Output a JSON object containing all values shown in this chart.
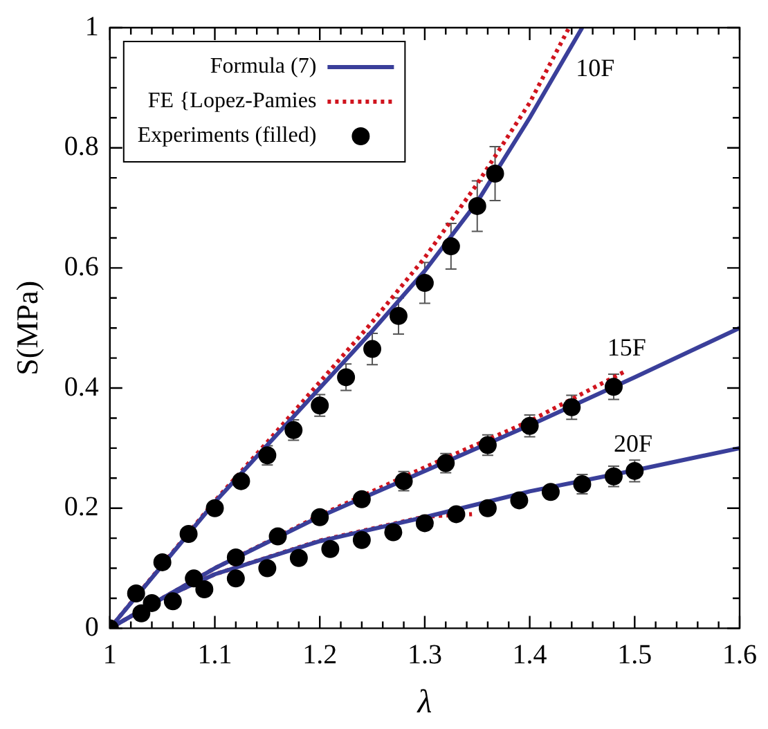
{
  "chart_data": {
    "type": "line",
    "xlabel": "λ",
    "ylabel": "S(MPa)",
    "xlim": [
      1,
      1.6
    ],
    "ylim": [
      0,
      1
    ],
    "xticks": [
      1,
      {
        "value": 1.02,
        "label": null
      },
      {
        "value": 1.04,
        "label": null
      },
      {
        "value": 1.06,
        "label": null
      },
      {
        "value": 1.08,
        "label": null
      },
      1.1,
      {
        "value": 1.12,
        "label": null
      },
      {
        "value": 1.14,
        "label": null
      },
      {
        "value": 1.16,
        "label": null
      },
      {
        "value": 1.18,
        "label": null
      },
      1.2,
      {
        "value": 1.22,
        "label": null
      },
      {
        "value": 1.24,
        "label": null
      },
      {
        "value": 1.26,
        "label": null
      },
      {
        "value": 1.28,
        "label": null
      },
      1.3,
      {
        "value": 1.32,
        "label": null
      },
      {
        "value": 1.34,
        "label": null
      },
      {
        "value": 1.36,
        "label": null
      },
      {
        "value": 1.38,
        "label": null
      },
      1.4,
      {
        "value": 1.42,
        "label": null
      },
      {
        "value": 1.44,
        "label": null
      },
      {
        "value": 1.46,
        "label": null
      },
      {
        "value": 1.48,
        "label": null
      },
      1.5,
      {
        "value": 1.52,
        "label": null
      },
      {
        "value": 1.54,
        "label": null
      },
      {
        "value": 1.56,
        "label": null
      },
      {
        "value": 1.58,
        "label": null
      },
      1.6
    ],
    "yticks": [
      0,
      {
        "value": 0.05,
        "label": null
      },
      {
        "value": 0.1,
        "label": null
      },
      {
        "value": 0.15,
        "label": null
      },
      0.2,
      {
        "value": 0.25,
        "label": null
      },
      {
        "value": 0.3,
        "label": null
      },
      {
        "value": 0.35,
        "label": null
      },
      0.4,
      {
        "value": 0.45,
        "label": null
      },
      {
        "value": 0.5,
        "label": null
      },
      {
        "value": 0.55,
        "label": null
      },
      0.6,
      {
        "value": 0.65,
        "label": null
      },
      {
        "value": 0.7,
        "label": null
      },
      {
        "value": 0.75,
        "label": null
      },
      0.8,
      {
        "value": 0.85,
        "label": null
      },
      {
        "value": 0.9,
        "label": null
      },
      {
        "value": 0.95,
        "label": null
      },
      1
    ],
    "grid": false,
    "legend": "top left",
    "annotations": [
      "10F",
      "15F",
      "20F"
    ],
    "series": [
      {
        "name": "Formula (7)",
        "color": "#3a3f9a",
        "line_style": "solid",
        "x": [
          1,
          1.05,
          1.1,
          1.15,
          1.2,
          1.25,
          1.3,
          1.35,
          1.4,
          1.45
        ],
        "values": [
          0,
          0.105,
          0.21,
          0.305,
          0.4,
          0.495,
          0.595,
          0.71,
          0.85,
          1.0
        ]
      },
      {
        "color": "#3a3f9a",
        "line_style": "solid",
        "x": [
          1,
          1.1,
          1.2,
          1.3,
          1.4,
          1.5,
          1.6
        ],
        "values": [
          0,
          0.1,
          0.186,
          0.262,
          0.338,
          0.418,
          0.5
        ]
      },
      {
        "color": "#3a3f9a",
        "line_style": "solid",
        "x": [
          1,
          1.05,
          1.1,
          1.2,
          1.3,
          1.4,
          1.5,
          1.6
        ],
        "values": [
          0,
          0.05,
          0.09,
          0.145,
          0.185,
          0.228,
          0.263,
          0.3
        ]
      },
      {
        "name": "FE {Lopez-Pamies",
        "color": "#d0141e",
        "line_style": "dotted",
        "x": [
          1,
          1.05,
          1.1,
          1.15,
          1.2,
          1.25,
          1.3,
          1.35,
          1.4,
          1.4375
        ],
        "values": [
          0,
          0.106,
          0.212,
          0.31,
          0.41,
          0.51,
          0.617,
          0.74,
          0.875,
          1.0
        ]
      },
      {
        "color": "#d0141e",
        "line_style": "dotted",
        "x": [
          1,
          1.1,
          1.2,
          1.3,
          1.4,
          1.49
        ],
        "values": [
          0,
          0.1,
          0.188,
          0.268,
          0.345,
          0.427
        ]
      },
      {
        "color": "#d0141e",
        "line_style": "dotted",
        "x": [
          1,
          1.05,
          1.1,
          1.2,
          1.3,
          1.345
        ],
        "values": [
          0,
          0.05,
          0.09,
          0.146,
          0.186,
          0.19
        ]
      },
      {
        "type": "scatter",
        "name": "Experiments (filled)",
        "color": "#000000",
        "marker": "circle",
        "x": [
          1,
          1.025,
          1.05,
          1.075,
          1.1,
          1.125,
          1.15,
          1.175,
          1.2,
          1.225,
          1.25,
          1.275,
          1.3,
          1.325,
          1.35,
          1.367
        ],
        "values": [
          0,
          0.058,
          0.11,
          0.157,
          0.2,
          0.245,
          0.288,
          0.33,
          0.371,
          0.418,
          0.465,
          0.52,
          0.575,
          0.636,
          0.703,
          0.757
        ],
        "errors": [
          null,
          null,
          null,
          null,
          null,
          null,
          0.016,
          0.017,
          0.018,
          0.022,
          0.026,
          0.03,
          0.034,
          0.038,
          0.042,
          0.045
        ]
      },
      {
        "type": "scatter",
        "color": "#000000",
        "marker": "circle",
        "x": [
          1.04,
          1.08,
          1.12,
          1.16,
          1.2,
          1.24,
          1.28,
          1.32,
          1.36,
          1.4,
          1.44,
          1.48
        ],
        "values": [
          0.042,
          0.083,
          0.118,
          0.153,
          0.185,
          0.215,
          0.245,
          0.275,
          0.305,
          0.337,
          0.368,
          0.402
        ],
        "errors": [
          null,
          null,
          null,
          null,
          null,
          null,
          0.016,
          0.016,
          0.017,
          0.018,
          0.02,
          0.021
        ]
      },
      {
        "type": "scatter",
        "color": "#000000",
        "marker": "circle",
        "x": [
          1.03,
          1.06,
          1.09,
          1.12,
          1.15,
          1.18,
          1.21,
          1.24,
          1.27,
          1.3,
          1.33,
          1.36,
          1.39,
          1.42,
          1.45,
          1.48,
          1.5
        ],
        "values": [
          0.025,
          0.045,
          0.065,
          0.083,
          0.1,
          0.117,
          0.132,
          0.147,
          0.16,
          0.175,
          0.19,
          0.2,
          0.213,
          0.227,
          0.24,
          0.253,
          0.262
        ],
        "errors": [
          null,
          null,
          null,
          null,
          null,
          null,
          null,
          null,
          null,
          null,
          null,
          null,
          null,
          null,
          0.016,
          0.017,
          0.018
        ]
      }
    ]
  }
}
